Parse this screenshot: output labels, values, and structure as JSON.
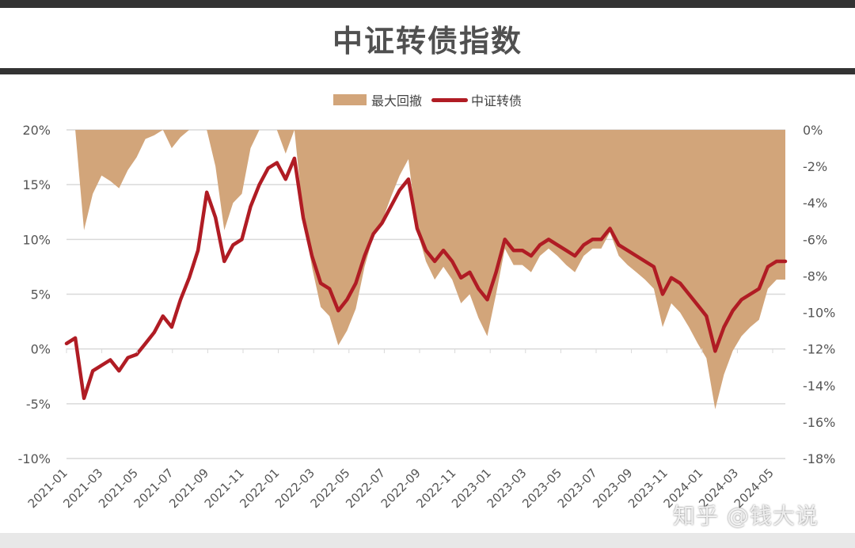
{
  "header": {
    "title": "中证转债指数"
  },
  "legend": {
    "drawdown_label": "最大回撤",
    "index_label": "中证转债"
  },
  "watermark": "知乎 @钱大说",
  "colors": {
    "drawdown": "#d2a57a",
    "index": "#b01c24",
    "grid": "#d9d9d9",
    "axis_text": "#555555"
  },
  "chart_data": {
    "type": "line+area",
    "title": "中证转债指数",
    "legend_position": "top",
    "grid": true,
    "left_axis": {
      "label": "",
      "ticks": [
        "20%",
        "15%",
        "10%",
        "5%",
        "0%",
        "-5%",
        "-10%"
      ],
      "range": [
        -10,
        20
      ]
    },
    "right_axis": {
      "label": "",
      "ticks": [
        "0%",
        "-2%",
        "-4%",
        "-6%",
        "-8%",
        "-10%",
        "-12%",
        "-14%",
        "-16%",
        "-18%"
      ],
      "range": [
        -18,
        0
      ]
    },
    "x_tick_labels": [
      "2021-01",
      "2021-03",
      "2021-05",
      "2021-07",
      "2021-09",
      "2021-11",
      "2022-01",
      "2022-03",
      "2022-05",
      "2022-07",
      "2022-09",
      "2022-11",
      "2023-01",
      "2023-03",
      "2023-05",
      "2023-07",
      "2023-09",
      "2023-11",
      "2024-01",
      "2024-03",
      "2024-05"
    ],
    "x": [
      "2021-01a",
      "2021-01b",
      "2021-02a",
      "2021-02b",
      "2021-03a",
      "2021-03b",
      "2021-04a",
      "2021-04b",
      "2021-05a",
      "2021-05b",
      "2021-06a",
      "2021-06b",
      "2021-07a",
      "2021-07b",
      "2021-08a",
      "2021-08b",
      "2021-09a",
      "2021-09b",
      "2021-10a",
      "2021-10b",
      "2021-11a",
      "2021-11b",
      "2021-12a",
      "2021-12b",
      "2022-01a",
      "2022-01b",
      "2022-02a",
      "2022-02b",
      "2022-03a",
      "2022-03b",
      "2022-04a",
      "2022-04b",
      "2022-05a",
      "2022-05b",
      "2022-06a",
      "2022-06b",
      "2022-07a",
      "2022-07b",
      "2022-08a",
      "2022-08b",
      "2022-09a",
      "2022-09b",
      "2022-10a",
      "2022-10b",
      "2022-11a",
      "2022-11b",
      "2022-12a",
      "2022-12b",
      "2023-01a",
      "2023-01b",
      "2023-02a",
      "2023-02b",
      "2023-03a",
      "2023-03b",
      "2023-04a",
      "2023-04b",
      "2023-05a",
      "2023-05b",
      "2023-06a",
      "2023-06b",
      "2023-07a",
      "2023-07b",
      "2023-08a",
      "2023-08b",
      "2023-09a",
      "2023-09b",
      "2023-10a",
      "2023-10b",
      "2023-11a",
      "2023-11b",
      "2023-12a",
      "2023-12b",
      "2024-01a",
      "2024-01b",
      "2024-02a",
      "2024-02b",
      "2024-03a",
      "2024-03b",
      "2024-04a",
      "2024-04b",
      "2024-05a",
      "2024-05b",
      "2024-05c"
    ],
    "series": [
      {
        "name": "中证转债",
        "axis": "left",
        "type": "line",
        "values": [
          0.5,
          1.0,
          -4.5,
          -2.0,
          -1.5,
          -1.0,
          -2.0,
          -0.8,
          -0.5,
          0.5,
          1.5,
          3.0,
          2.0,
          4.5,
          6.5,
          9.0,
          14.3,
          12.0,
          8.0,
          9.5,
          10.0,
          13.0,
          15.0,
          16.5,
          17.0,
          15.5,
          17.4,
          12.0,
          8.5,
          6.0,
          5.5,
          3.5,
          4.5,
          6.0,
          8.5,
          10.5,
          11.5,
          13.0,
          14.5,
          15.5,
          11.0,
          9.0,
          8.0,
          9.0,
          8.0,
          6.5,
          7.0,
          5.5,
          4.5,
          7.0,
          10.0,
          9.0,
          9.0,
          8.5,
          9.5,
          10.0,
          9.5,
          9.0,
          8.5,
          9.5,
          10.0,
          10.0,
          11.0,
          9.5,
          9.0,
          8.5,
          8.0,
          7.5,
          5.0,
          6.5,
          6.0,
          5.0,
          4.0,
          3.0,
          -0.2,
          2.0,
          3.5,
          4.5,
          5.0,
          5.5,
          7.5,
          8.0,
          8.0
        ]
      },
      {
        "name": "最大回撤",
        "axis": "right",
        "type": "area",
        "values": [
          0,
          0,
          -5.5,
          -3.5,
          -2.5,
          -2.8,
          -3.2,
          -2.2,
          -1.5,
          -0.5,
          -0.3,
          0,
          -1.0,
          -0.4,
          0,
          0,
          0,
          -2.0,
          -5.5,
          -4.0,
          -3.5,
          -1.0,
          0,
          0,
          0,
          -1.3,
          0,
          -4.7,
          -7.5,
          -9.7,
          -10.2,
          -11.8,
          -11.0,
          -9.8,
          -7.5,
          -5.8,
          -5.0,
          -3.7,
          -2.5,
          -1.6,
          -5.5,
          -7.2,
          -8.2,
          -7.5,
          -8.2,
          -9.5,
          -9.0,
          -10.3,
          -11.3,
          -9.0,
          -6.5,
          -7.4,
          -7.4,
          -7.8,
          -6.9,
          -6.5,
          -6.9,
          -7.4,
          -7.8,
          -6.9,
          -6.5,
          -6.5,
          -5.6,
          -6.9,
          -7.4,
          -7.8,
          -8.2,
          -8.7,
          -10.8,
          -9.5,
          -10.0,
          -10.8,
          -11.7,
          -12.5,
          -15.3,
          -13.4,
          -12.1,
          -11.3,
          -10.8,
          -10.4,
          -8.7,
          -8.2,
          -8.2
        ]
      }
    ]
  }
}
